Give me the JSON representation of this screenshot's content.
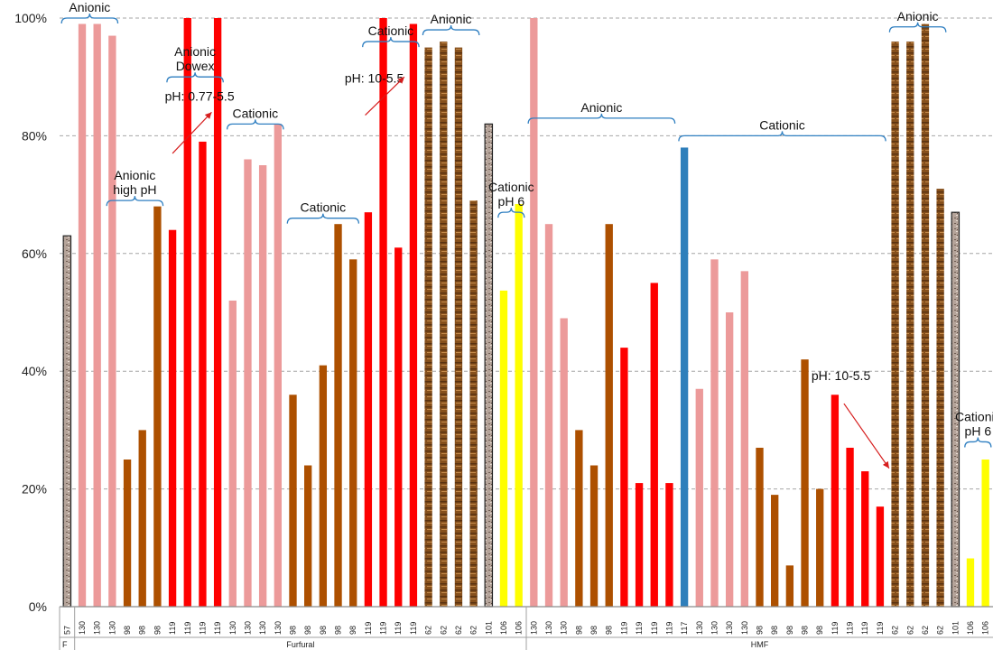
{
  "chart_data": {
    "type": "bar",
    "ylim": [
      0,
      100
    ],
    "yticks": [
      "0%",
      "20%",
      "40%",
      "60%",
      "80%",
      "100%"
    ],
    "yvalues": [
      0,
      20,
      40,
      60,
      80,
      100
    ],
    "grid": true,
    "colors": {
      "F": "#b5a49a",
      "P": "#ec9a9a",
      "O": "#ad5000",
      "R": "#fe0000",
      "W": "#86501c",
      "Y": "#fefe00",
      "B": "#2e7fbb"
    },
    "bars": [
      {
        "x": "57",
        "value": 63,
        "type": "F"
      },
      {
        "x": "130",
        "value": 99,
        "type": "P"
      },
      {
        "x": "130",
        "value": 99,
        "type": "P"
      },
      {
        "x": "130",
        "value": 97,
        "type": "P"
      },
      {
        "x": "98",
        "value": 25,
        "type": "O"
      },
      {
        "x": "98",
        "value": 30,
        "type": "O"
      },
      {
        "x": "98",
        "value": 68,
        "type": "O"
      },
      {
        "x": "119",
        "value": 64,
        "type": "R"
      },
      {
        "x": "119",
        "value": 100,
        "type": "R"
      },
      {
        "x": "119",
        "value": 79,
        "type": "R"
      },
      {
        "x": "119",
        "value": 100,
        "type": "R"
      },
      {
        "x": "130",
        "value": 52,
        "type": "P"
      },
      {
        "x": "130",
        "value": 76,
        "type": "P"
      },
      {
        "x": "130",
        "value": 75,
        "type": "P"
      },
      {
        "x": "130",
        "value": 82,
        "type": "P"
      },
      {
        "x": "98",
        "value": 36,
        "type": "O"
      },
      {
        "x": "98",
        "value": 24,
        "type": "O"
      },
      {
        "x": "98",
        "value": 41,
        "type": "O"
      },
      {
        "x": "98",
        "value": 65,
        "type": "O"
      },
      {
        "x": "98",
        "value": 59,
        "type": "O"
      },
      {
        "x": "119",
        "value": 67,
        "type": "R"
      },
      {
        "x": "119",
        "value": 100,
        "type": "R"
      },
      {
        "x": "119",
        "value": 61,
        "type": "R"
      },
      {
        "x": "119",
        "value": 99,
        "type": "R"
      },
      {
        "x": "62",
        "value": 95,
        "type": "W"
      },
      {
        "x": "62",
        "value": 96,
        "type": "W"
      },
      {
        "x": "62",
        "value": 95,
        "type": "W"
      },
      {
        "x": "62",
        "value": 69,
        "type": "W"
      },
      {
        "x": "101",
        "value": 82,
        "type": "F"
      },
      {
        "x": "106",
        "value": 53.7,
        "type": "Y"
      },
      {
        "x": "106",
        "value": 68.4,
        "type": "Y"
      },
      {
        "x": "130",
        "value": 100,
        "type": "P"
      },
      {
        "x": "130",
        "value": 65,
        "type": "P"
      },
      {
        "x": "130",
        "value": 49,
        "type": "P"
      },
      {
        "x": "98",
        "value": 30,
        "type": "O"
      },
      {
        "x": "98",
        "value": 24,
        "type": "O"
      },
      {
        "x": "98",
        "value": 65,
        "type": "O"
      },
      {
        "x": "119",
        "value": 44,
        "type": "R"
      },
      {
        "x": "119",
        "value": 21,
        "type": "R"
      },
      {
        "x": "119",
        "value": 55,
        "type": "R"
      },
      {
        "x": "119",
        "value": 21,
        "type": "R"
      },
      {
        "x": "117",
        "value": 78,
        "type": "B"
      },
      {
        "x": "130",
        "value": 37,
        "type": "P"
      },
      {
        "x": "130",
        "value": 59,
        "type": "P"
      },
      {
        "x": "130",
        "value": 50,
        "type": "P"
      },
      {
        "x": "130",
        "value": 57,
        "type": "P"
      },
      {
        "x": "98",
        "value": 27,
        "type": "O"
      },
      {
        "x": "98",
        "value": 19,
        "type": "O"
      },
      {
        "x": "98",
        "value": 7,
        "type": "O"
      },
      {
        "x": "98",
        "value": 42,
        "type": "O"
      },
      {
        "x": "98",
        "value": 20,
        "type": "O"
      },
      {
        "x": "119",
        "value": 36,
        "type": "R"
      },
      {
        "x": "119",
        "value": 27,
        "type": "R"
      },
      {
        "x": "119",
        "value": 23,
        "type": "R"
      },
      {
        "x": "119",
        "value": 17,
        "type": "R"
      },
      {
        "x": "62",
        "value": 96,
        "type": "W"
      },
      {
        "x": "62",
        "value": 96,
        "type": "W"
      },
      {
        "x": "62",
        "value": 99,
        "type": "W"
      },
      {
        "x": "62",
        "value": 71,
        "type": "W"
      },
      {
        "x": "101",
        "value": 67,
        "type": "F"
      },
      {
        "x": "106",
        "value": 8.2,
        "type": "Y"
      },
      {
        "x": "106",
        "value": 25,
        "type": "Y"
      }
    ],
    "groups": [
      {
        "label": "F",
        "from": 0,
        "to": 0
      },
      {
        "label": "Furfural",
        "from": 1,
        "to": 30
      },
      {
        "label": "HMF",
        "from": 31,
        "to": 61
      }
    ],
    "annotations": [
      {
        "lines": [
          "Anionic"
        ],
        "from": 0,
        "to": 3,
        "level": 100
      },
      {
        "lines": [
          "Anionic",
          "high  pH"
        ],
        "from": 3,
        "to": 6,
        "level": 69
      },
      {
        "lines": [
          "Anionic",
          "Dowex"
        ],
        "from": 7,
        "to": 10,
        "level": 90
      },
      {
        "lines": [
          "pH: 0.77-5.5"
        ],
        "level": 86,
        "center": 8.8
      },
      {
        "lines": [
          "Cationic"
        ],
        "from": 11,
        "to": 14,
        "level": 82
      },
      {
        "lines": [
          "Cationic"
        ],
        "from": 15,
        "to": 19,
        "level": 66
      },
      {
        "lines": [
          "Cationic"
        ],
        "from": 20,
        "to": 23,
        "level": 96
      },
      {
        "lines": [
          "pH: 10-5.5"
        ],
        "level": 89,
        "center": 20.4
      },
      {
        "lines": [
          "Anionic"
        ],
        "from": 24,
        "to": 27,
        "level": 98
      },
      {
        "lines": [
          "Cationic",
          "pH 6"
        ],
        "from": 29,
        "to": 30,
        "level": 67
      },
      {
        "lines": [
          "Anionic"
        ],
        "from": 31,
        "to": 40,
        "level": 83
      },
      {
        "lines": [
          "Cationic"
        ],
        "from": 41,
        "to": 54,
        "level": 80
      },
      {
        "lines": [
          "pH: 10-5.5"
        ],
        "level": 38.5,
        "center": 51.4
      },
      {
        "lines": [
          "Anionic"
        ],
        "from": 55,
        "to": 58,
        "level": 98.5
      },
      {
        "lines": [
          "Cationic",
          "pH 6"
        ],
        "from": 60,
        "to": 61,
        "level": 28
      }
    ],
    "arrows": [
      {
        "from": [
          7,
          77
        ],
        "to": [
          9.6,
          84
        ]
      },
      {
        "from": [
          19.8,
          83.5
        ],
        "to": [
          22.4,
          90
        ]
      },
      {
        "from": [
          51.6,
          34.5
        ],
        "to": [
          54.6,
          23.5
        ]
      }
    ]
  }
}
